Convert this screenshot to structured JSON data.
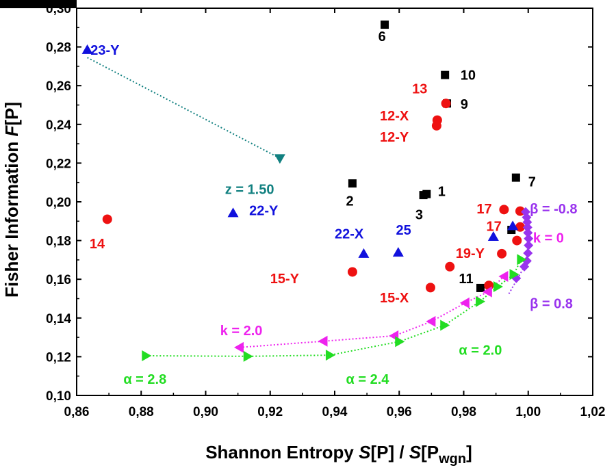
{
  "chart_data": {
    "type": "scatter",
    "xlabel": "Shannon Entropy S[P] / S[Pwgn]",
    "xlabel_parts": {
      "pre": "Shannon  Entropy  ",
      "s1": "S",
      "mid": "[P] / ",
      "s2": "S",
      "post": "[P",
      "sub": "wgn",
      "close": "]"
    },
    "ylabel": "Fisher Information F[P]",
    "ylabel_parts": {
      "pre": "Fisher  Information  ",
      "f": "F",
      "post": "[P]"
    },
    "xlim": [
      0.86,
      1.02
    ],
    "ylim": [
      0.1,
      0.3
    ],
    "grid": false,
    "legend": "none",
    "x_ticks": [
      {
        "v": 0.86,
        "label": "0,86"
      },
      {
        "v": 0.88,
        "label": "0,88"
      },
      {
        "v": 0.9,
        "label": "0,90"
      },
      {
        "v": 0.92,
        "label": "0,92"
      },
      {
        "v": 0.94,
        "label": "0,94"
      },
      {
        "v": 0.96,
        "label": "0,96"
      },
      {
        "v": 0.98,
        "label": "0,98"
      },
      {
        "v": 1.0,
        "label": "1,00"
      },
      {
        "v": 1.02,
        "label": "1,02"
      }
    ],
    "y_ticks": [
      {
        "v": 0.1,
        "label": "0,10"
      },
      {
        "v": 0.12,
        "label": "0,12"
      },
      {
        "v": 0.14,
        "label": "0,14"
      },
      {
        "v": 0.16,
        "label": "0,16"
      },
      {
        "v": 0.18,
        "label": "0,18"
      },
      {
        "v": 0.2,
        "label": "0,20"
      },
      {
        "v": 0.22,
        "label": "0,22"
      },
      {
        "v": 0.24,
        "label": "0,24"
      },
      {
        "v": 0.26,
        "label": "0,26"
      },
      {
        "v": 0.28,
        "label": "0,28"
      },
      {
        "v": 0.3,
        "label": "0,30"
      }
    ],
    "colors": {
      "square": "#000000",
      "circle": "#ee1111",
      "triangle_up": "#1111dd",
      "triangle_down": "#118080",
      "diamond": "#9933ee",
      "triangle_left": "#ee22ee",
      "triangle_right": "#22dd22"
    },
    "series": [
      {
        "marker": "square",
        "color": "#000000",
        "points": [
          {
            "x": 0.9675,
            "y": 0.2035
          },
          {
            "x": 0.9685,
            "y": 0.204
          },
          {
            "x": 0.9455,
            "y": 0.2095
          },
          {
            "x": 0.9555,
            "y": 0.2915
          },
          {
            "x": 0.9962,
            "y": 0.2125
          },
          {
            "x": 0.9742,
            "y": 0.2655
          },
          {
            "x": 0.9748,
            "y": 0.2508
          },
          {
            "x": 0.9852,
            "y": 0.1555
          },
          {
            "x": 0.9948,
            "y": 0.1855
          }
        ]
      },
      {
        "marker": "circle",
        "color": "#ee1111",
        "points": [
          {
            "x": 0.8695,
            "y": 0.191
          },
          {
            "x": 0.9455,
            "y": 0.1638
          },
          {
            "x": 0.9697,
            "y": 0.1557
          },
          {
            "x": 0.9757,
            "y": 0.1665
          },
          {
            "x": 0.9718,
            "y": 0.2422
          },
          {
            "x": 0.9716,
            "y": 0.2393
          },
          {
            "x": 0.9745,
            "y": 0.2508
          },
          {
            "x": 0.9925,
            "y": 0.196
          },
          {
            "x": 0.9918,
            "y": 0.1732
          },
          {
            "x": 0.9878,
            "y": 0.1568
          },
          {
            "x": 0.9975,
            "y": 0.1952
          },
          {
            "x": 0.9975,
            "y": 0.187
          },
          {
            "x": 0.9965,
            "y": 0.18
          }
        ]
      },
      {
        "marker": "triangle_up",
        "color": "#1111dd",
        "points": [
          {
            "x": 0.8633,
            "y": 0.2785
          },
          {
            "x": 0.9085,
            "y": 0.1942
          },
          {
            "x": 0.949,
            "y": 0.1732
          },
          {
            "x": 0.9597,
            "y": 0.1738
          },
          {
            "x": 0.9892,
            "y": 0.182
          },
          {
            "x": 0.9952,
            "y": 0.1875
          }
        ]
      },
      {
        "marker": "triangle_down",
        "color": "#118080",
        "points": [
          {
            "x": 0.923,
            "y": 0.2225
          }
        ],
        "dotted_line": [
          {
            "x": 0.8633,
            "y": 0.2745
          },
          {
            "x": 0.923,
            "y": 0.2225
          }
        ]
      },
      {
        "marker": "diamond",
        "color": "#9933ee",
        "points": [
          {
            "x": 0.9992,
            "y": 0.1948
          },
          {
            "x": 0.9995,
            "y": 0.192
          },
          {
            "x": 0.9997,
            "y": 0.1895
          },
          {
            "x": 0.9998,
            "y": 0.1868
          },
          {
            "x": 0.9999,
            "y": 0.184
          },
          {
            "x": 1.0001,
            "y": 0.181
          },
          {
            "x": 1.0001,
            "y": 0.1775
          },
          {
            "x": 0.9999,
            "y": 0.1735
          },
          {
            "x": 0.9996,
            "y": 0.1695
          },
          {
            "x": 0.9988,
            "y": 0.1665
          },
          {
            "x": 0.9963,
            "y": 0.1605
          }
        ],
        "dotted_line": [
          {
            "x": 0.994,
            "y": 0.1525
          },
          {
            "x": 0.9988,
            "y": 0.1665
          }
        ]
      },
      {
        "marker": "triangle_left",
        "color": "#ee22ee",
        "points": [
          {
            "x": 0.9105,
            "y": 0.1248
          },
          {
            "x": 0.9365,
            "y": 0.128
          },
          {
            "x": 0.9585,
            "y": 0.1308
          },
          {
            "x": 0.97,
            "y": 0.1382
          },
          {
            "x": 0.9805,
            "y": 0.1478
          },
          {
            "x": 0.9875,
            "y": 0.1535
          },
          {
            "x": 0.9925,
            "y": 0.1615
          }
        ],
        "connected": true
      },
      {
        "marker": "triangle_right",
        "color": "#22dd22",
        "points": [
          {
            "x": 0.8815,
            "y": 0.1205
          },
          {
            "x": 0.913,
            "y": 0.1202
          },
          {
            "x": 0.9385,
            "y": 0.1208
          },
          {
            "x": 0.96,
            "y": 0.1278
          },
          {
            "x": 0.974,
            "y": 0.1362
          },
          {
            "x": 0.985,
            "y": 0.1485
          },
          {
            "x": 0.9905,
            "y": 0.1562
          },
          {
            "x": 0.9955,
            "y": 0.1625
          },
          {
            "x": 0.9978,
            "y": 0.1702
          }
        ],
        "connected": true
      }
    ],
    "annotations": [
      {
        "text": "23-Y",
        "x": 0.8643,
        "y": 0.2785,
        "color": "#1111dd"
      },
      {
        "text": "6",
        "x": 0.9535,
        "y": 0.2855,
        "color": "#000000"
      },
      {
        "text": "10",
        "x": 0.979,
        "y": 0.2655,
        "color": "#000000"
      },
      {
        "text": "13",
        "x": 0.964,
        "y": 0.2585,
        "color": "#ee1111"
      },
      {
        "text": "9",
        "x": 0.979,
        "y": 0.2505,
        "color": "#000000"
      },
      {
        "text": "12-X",
        "x": 0.954,
        "y": 0.2445,
        "color": "#ee1111"
      },
      {
        "text": "12-Y",
        "x": 0.954,
        "y": 0.2335,
        "color": "#ee1111"
      },
      {
        "text": "z = 1.50",
        "x": 0.906,
        "y": 0.2065,
        "color": "#118080"
      },
      {
        "text": "2",
        "x": 0.9435,
        "y": 0.2005,
        "color": "#000000"
      },
      {
        "text": "1",
        "x": 0.972,
        "y": 0.2055,
        "color": "#000000"
      },
      {
        "text": "3",
        "x": 0.965,
        "y": 0.1935,
        "color": "#000000"
      },
      {
        "text": "7",
        "x": 1.0,
        "y": 0.2105,
        "color": "#000000"
      },
      {
        "text": "22-Y",
        "x": 0.9135,
        "y": 0.1955,
        "color": "#1111dd"
      },
      {
        "text": "17",
        "x": 0.984,
        "y": 0.1965,
        "color": "#ee1111"
      },
      {
        "text": "β = -0.8",
        "x": 1.0005,
        "y": 0.1965,
        "color": "#9933ee"
      },
      {
        "text": "17",
        "x": 0.987,
        "y": 0.1875,
        "color": "#ee1111"
      },
      {
        "text": "22-X",
        "x": 0.94,
        "y": 0.1835,
        "color": "#1111dd"
      },
      {
        "text": "25",
        "x": 0.959,
        "y": 0.1855,
        "color": "#1111dd"
      },
      {
        "text": "k = 0",
        "x": 1.0015,
        "y": 0.1815,
        "color": "#ee22ee"
      },
      {
        "text": "14",
        "x": 0.864,
        "y": 0.1785,
        "color": "#ee1111"
      },
      {
        "text": "19-Y",
        "x": 0.9775,
        "y": 0.1735,
        "color": "#ee1111"
      },
      {
        "text": "11",
        "x": 0.9785,
        "y": 0.1605,
        "color": "#000000"
      },
      {
        "text": "15-Y",
        "x": 0.92,
        "y": 0.1605,
        "color": "#ee1111"
      },
      {
        "text": "15-X",
        "x": 0.954,
        "y": 0.1505,
        "color": "#ee1111"
      },
      {
        "text": "β = 0.8",
        "x": 1.0005,
        "y": 0.1475,
        "color": "#9933ee"
      },
      {
        "text": "k = 2.0",
        "x": 0.9045,
        "y": 0.1335,
        "color": "#ee22ee"
      },
      {
        "text": "α = 2.0",
        "x": 0.9785,
        "y": 0.1235,
        "color": "#22dd22"
      },
      {
        "text": "α = 2.8",
        "x": 0.8745,
        "y": 0.1085,
        "color": "#22dd22"
      },
      {
        "text": "α = 2.4",
        "x": 0.9435,
        "y": 0.1085,
        "color": "#22dd22"
      }
    ]
  }
}
